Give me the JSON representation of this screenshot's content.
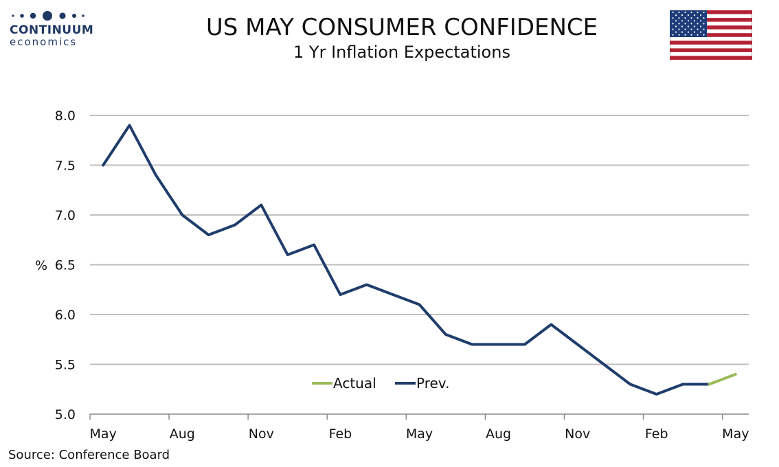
{
  "branding": {
    "name": "CONTINUUM",
    "sub": "economics"
  },
  "header": {
    "title": "US MAY CONSUMER CONFIDENCE",
    "subtitle": "1 Yr Inflation Expectations"
  },
  "footer": {
    "source": "Source: Conference Board"
  },
  "colors": {
    "prev": "#1f3d6b",
    "actual": "#9bbb59",
    "grid": "#bfbfbf",
    "axis": "#888888"
  },
  "chart_data": {
    "type": "line",
    "title": "US MAY CONSUMER CONFIDENCE",
    "subtitle": "1 Yr Inflation Expectations",
    "ylabel": "%",
    "ylim": [
      5.0,
      8.0
    ],
    "yticks": [
      "5.0",
      "5.5",
      "6.0",
      "6.5",
      "7.0",
      "7.5",
      "8.0"
    ],
    "x_tick_labels": [
      "May",
      "Aug",
      "Nov",
      "Feb",
      "May",
      "Aug",
      "Nov",
      "Feb",
      "May"
    ],
    "grid": true,
    "legend_position": "bottom-center",
    "series": [
      {
        "name": "Prev.",
        "values": [
          7.5,
          7.9,
          7.4,
          7.0,
          6.8,
          6.9,
          7.1,
          6.6,
          6.7,
          6.2,
          6.3,
          6.2,
          6.1,
          5.8,
          5.7,
          5.7,
          5.7,
          5.9,
          5.7,
          5.5,
          5.3,
          5.2,
          5.3,
          5.3,
          null
        ]
      },
      {
        "name": "Actual",
        "values": [
          null,
          null,
          null,
          null,
          null,
          null,
          null,
          null,
          null,
          null,
          null,
          null,
          null,
          null,
          null,
          null,
          null,
          null,
          null,
          null,
          null,
          null,
          null,
          5.3,
          5.4
        ]
      }
    ]
  }
}
